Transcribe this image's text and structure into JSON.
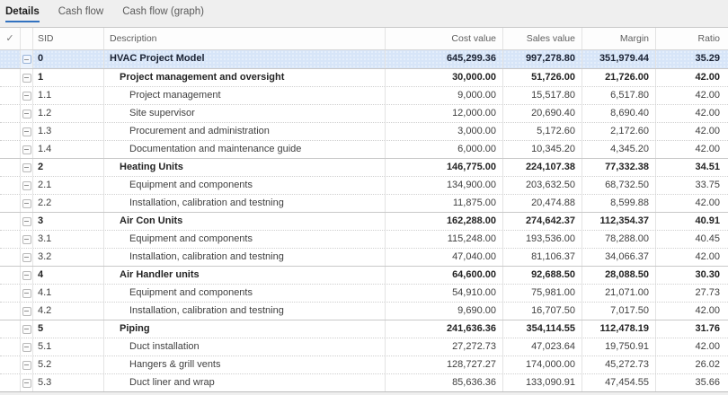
{
  "tabs": [
    {
      "label": "Details",
      "active": true
    },
    {
      "label": "Cash flow",
      "active": false
    },
    {
      "label": "Cash flow (graph)",
      "active": false
    }
  ],
  "colors": {
    "accent_blue": "#3272c0",
    "selected_row_bg": "#d7e5f8",
    "tabbar_bg": "#efefef"
  },
  "icons": {
    "select_all": "check-icon",
    "row_expander": "collapse-minus-icon"
  },
  "header": {
    "select_all_glyph": "✓",
    "sid": "SID",
    "description": "Description",
    "cost_value": "Cost value",
    "sales_value": "Sales value",
    "margin": "Margin",
    "ratio": "Ratio"
  },
  "rows": [
    {
      "sid": "0",
      "description": "HVAC Project Model",
      "cost": "645,299.36",
      "sales": "997,278.80",
      "margin": "351,979.44",
      "ratio": "35.29",
      "level": 0,
      "bold": true,
      "selected": true
    },
    {
      "sid": "1",
      "description": "Project management and oversight",
      "cost": "30,000.00",
      "sales": "51,726.00",
      "margin": "21,726.00",
      "ratio": "42.00",
      "level": 1,
      "bold": true,
      "selected": false
    },
    {
      "sid": "1.1",
      "description": "Project management",
      "cost": "9,000.00",
      "sales": "15,517.80",
      "margin": "6,517.80",
      "ratio": "42.00",
      "level": 2,
      "bold": false,
      "selected": false
    },
    {
      "sid": "1.2",
      "description": "Site supervisor",
      "cost": "12,000.00",
      "sales": "20,690.40",
      "margin": "8,690.40",
      "ratio": "42.00",
      "level": 2,
      "bold": false,
      "selected": false
    },
    {
      "sid": "1.3",
      "description": "Procurement and administration",
      "cost": "3,000.00",
      "sales": "5,172.60",
      "margin": "2,172.60",
      "ratio": "42.00",
      "level": 2,
      "bold": false,
      "selected": false
    },
    {
      "sid": "1.4",
      "description": "Documentation and maintenance guide",
      "cost": "6,000.00",
      "sales": "10,345.20",
      "margin": "4,345.20",
      "ratio": "42.00",
      "level": 2,
      "bold": false,
      "selected": false
    },
    {
      "sid": "2",
      "description": "Heating Units",
      "cost": "146,775.00",
      "sales": "224,107.38",
      "margin": "77,332.38",
      "ratio": "34.51",
      "level": 1,
      "bold": true,
      "selected": false
    },
    {
      "sid": "2.1",
      "description": "Equipment and components",
      "cost": "134,900.00",
      "sales": "203,632.50",
      "margin": "68,732.50",
      "ratio": "33.75",
      "level": 2,
      "bold": false,
      "selected": false
    },
    {
      "sid": "2.2",
      "description": "Installation, calibration and testning",
      "cost": "11,875.00",
      "sales": "20,474.88",
      "margin": "8,599.88",
      "ratio": "42.00",
      "level": 2,
      "bold": false,
      "selected": false
    },
    {
      "sid": "3",
      "description": "Air Con Units",
      "cost": "162,288.00",
      "sales": "274,642.37",
      "margin": "112,354.37",
      "ratio": "40.91",
      "level": 1,
      "bold": true,
      "selected": false
    },
    {
      "sid": "3.1",
      "description": "Equipment and components",
      "cost": "115,248.00",
      "sales": "193,536.00",
      "margin": "78,288.00",
      "ratio": "40.45",
      "level": 2,
      "bold": false,
      "selected": false
    },
    {
      "sid": "3.2",
      "description": "Installation, calibration and testning",
      "cost": "47,040.00",
      "sales": "81,106.37",
      "margin": "34,066.37",
      "ratio": "42.00",
      "level": 2,
      "bold": false,
      "selected": false
    },
    {
      "sid": "4",
      "description": "Air Handler units",
      "cost": "64,600.00",
      "sales": "92,688.50",
      "margin": "28,088.50",
      "ratio": "30.30",
      "level": 1,
      "bold": true,
      "selected": false
    },
    {
      "sid": "4.1",
      "description": "Equipment and components",
      "cost": "54,910.00",
      "sales": "75,981.00",
      "margin": "21,071.00",
      "ratio": "27.73",
      "level": 2,
      "bold": false,
      "selected": false
    },
    {
      "sid": "4.2",
      "description": "Installation, calibration and testning",
      "cost": "9,690.00",
      "sales": "16,707.50",
      "margin": "7,017.50",
      "ratio": "42.00",
      "level": 2,
      "bold": false,
      "selected": false
    },
    {
      "sid": "5",
      "description": "Piping",
      "cost": "241,636.36",
      "sales": "354,114.55",
      "margin": "112,478.19",
      "ratio": "31.76",
      "level": 1,
      "bold": true,
      "selected": false
    },
    {
      "sid": "5.1",
      "description": "Duct installation",
      "cost": "27,272.73",
      "sales": "47,023.64",
      "margin": "19,750.91",
      "ratio": "42.00",
      "level": 2,
      "bold": false,
      "selected": false
    },
    {
      "sid": "5.2",
      "description": "Hangers & grill vents",
      "cost": "128,727.27",
      "sales": "174,000.00",
      "margin": "45,272.73",
      "ratio": "26.02",
      "level": 2,
      "bold": false,
      "selected": false
    },
    {
      "sid": "5.3",
      "description": "Duct liner and wrap",
      "cost": "85,636.36",
      "sales": "133,090.91",
      "margin": "47,454.55",
      "ratio": "35.66",
      "level": 2,
      "bold": false,
      "selected": false
    }
  ]
}
